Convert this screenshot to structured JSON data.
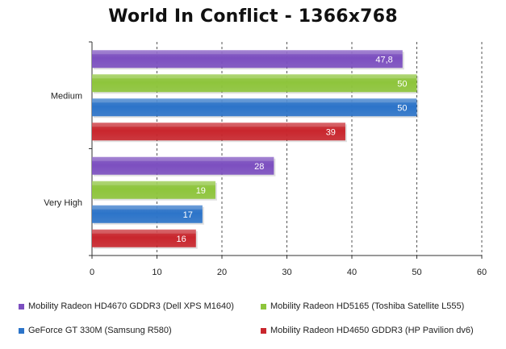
{
  "chart_data": {
    "type": "bar",
    "orientation": "horizontal",
    "title": "World In Conflict - 1366x768",
    "categories": [
      "Medium",
      "Very High"
    ],
    "series": [
      {
        "name": "Mobility Radeon HD4670 GDDR3 (Dell XPS M1640)",
        "color": "#7c4fc0",
        "values": [
          47.8,
          28
        ],
        "labels": [
          "47,8",
          "28"
        ]
      },
      {
        "name": "Mobility Radeon HD5165 (Toshiba Satellite L555)",
        "color": "#8ec53b",
        "values": [
          50,
          19
        ],
        "labels": [
          "50",
          "19"
        ]
      },
      {
        "name": "GeForce GT 330M (Samsung R580)",
        "color": "#2c74c9",
        "values": [
          50,
          17
        ],
        "labels": [
          "50",
          "17"
        ]
      },
      {
        "name": "Mobility Radeon HD4650 GDDR3 (HP Pavilion dv6)",
        "color": "#c9262d",
        "values": [
          39,
          16
        ],
        "labels": [
          "39",
          "16"
        ]
      }
    ],
    "xlim": [
      0,
      60
    ],
    "xticks": [
      0,
      10,
      20,
      30,
      40,
      50,
      60
    ],
    "grid": "vertical dashed",
    "legend_position": "bottom",
    "xlabel": "",
    "ylabel": ""
  }
}
